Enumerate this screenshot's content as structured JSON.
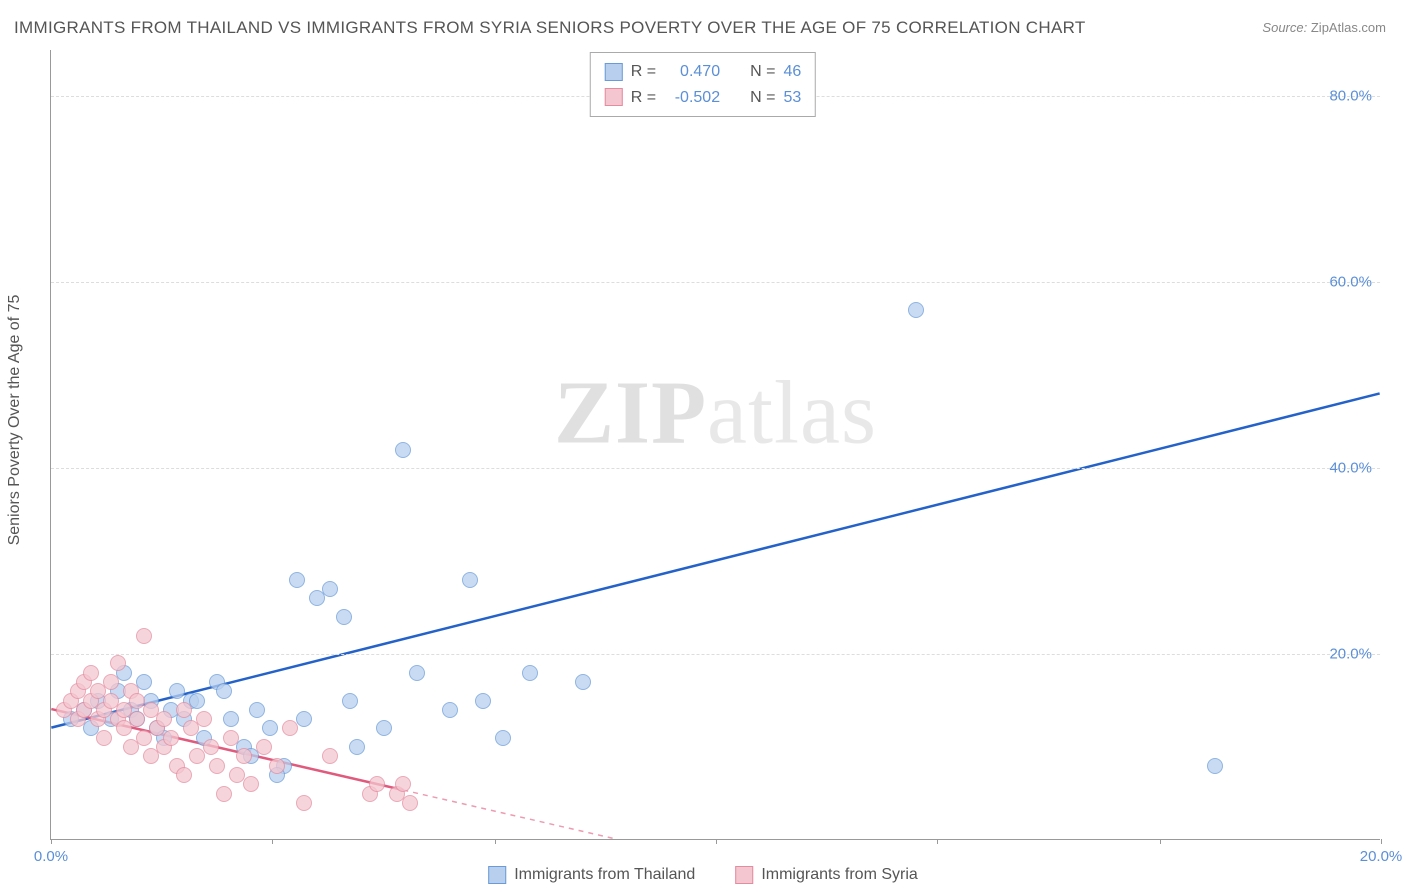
{
  "title": "IMMIGRANTS FROM THAILAND VS IMMIGRANTS FROM SYRIA SENIORS POVERTY OVER THE AGE OF 75 CORRELATION CHART",
  "source_label": "Source:",
  "source_value": "ZipAtlas.com",
  "y_axis_label": "Seniors Poverty Over the Age of 75",
  "watermark_bold": "ZIP",
  "watermark_light": "atlas",
  "chart": {
    "type": "scatter",
    "xlim": [
      0,
      20
    ],
    "ylim": [
      0,
      85
    ],
    "x_ticks": [
      0,
      3.33,
      6.67,
      10,
      13.33,
      16.67,
      20
    ],
    "x_tick_labels": [
      "0.0%",
      "",
      "",
      "",
      "",
      "",
      "20.0%"
    ],
    "y_ticks": [
      20,
      40,
      60,
      80
    ],
    "y_tick_labels": [
      "20.0%",
      "40.0%",
      "60.0%",
      "80.0%"
    ],
    "background_color": "#ffffff",
    "grid_color": "#dddddd",
    "axis_color": "#999999",
    "tick_label_color": "#5b8fd6",
    "series": [
      {
        "name": "Immigrants from Thailand",
        "fill_color": "#b8d0ee",
        "border_color": "#6a9bd8",
        "line_color": "#2462c9",
        "line_width": 2.5,
        "line_solid_end": 20,
        "R_label": "R =",
        "R": "0.470",
        "N_label": "N =",
        "N": "46",
        "trend": {
          "x1": 0,
          "y1": 12,
          "x2": 20,
          "y2": 48
        },
        "points": [
          [
            0.3,
            13
          ],
          [
            0.5,
            14
          ],
          [
            0.6,
            12
          ],
          [
            0.7,
            15
          ],
          [
            0.9,
            13
          ],
          [
            1.0,
            16
          ],
          [
            1.1,
            18
          ],
          [
            1.2,
            14
          ],
          [
            1.4,
            17
          ],
          [
            1.5,
            15
          ],
          [
            1.6,
            12
          ],
          [
            1.8,
            14
          ],
          [
            1.9,
            16
          ],
          [
            2.0,
            13
          ],
          [
            2.1,
            15
          ],
          [
            2.3,
            11
          ],
          [
            2.5,
            17
          ],
          [
            2.7,
            13
          ],
          [
            2.9,
            10
          ],
          [
            3.1,
            14
          ],
          [
            3.3,
            12
          ],
          [
            3.5,
            8
          ],
          [
            3.7,
            28
          ],
          [
            4.0,
            26
          ],
          [
            4.2,
            27
          ],
          [
            4.4,
            24
          ],
          [
            4.6,
            10
          ],
          [
            5.0,
            12
          ],
          [
            5.3,
            42
          ],
          [
            5.5,
            18
          ],
          [
            6.0,
            14
          ],
          [
            6.3,
            28
          ],
          [
            6.5,
            15
          ],
          [
            6.8,
            11
          ],
          [
            7.2,
            18
          ],
          [
            8.0,
            17
          ],
          [
            13.0,
            57
          ],
          [
            17.5,
            8
          ],
          [
            1.3,
            13
          ],
          [
            1.7,
            11
          ],
          [
            2.2,
            15
          ],
          [
            2.6,
            16
          ],
          [
            3.0,
            9
          ],
          [
            3.4,
            7
          ],
          [
            3.8,
            13
          ],
          [
            4.5,
            15
          ]
        ]
      },
      {
        "name": "Immigrants from Syria",
        "fill_color": "#f4c6cf",
        "border_color": "#e38ca0",
        "line_color": "#e05a7d",
        "line_width": 2.5,
        "line_solid_end": 5.3,
        "R_label": "R =",
        "R": "-0.502",
        "N_label": "N =",
        "N": "53",
        "trend": {
          "x1": 0,
          "y1": 14,
          "x2": 8.5,
          "y2": 0
        },
        "points": [
          [
            0.2,
            14
          ],
          [
            0.3,
            15
          ],
          [
            0.4,
            16
          ],
          [
            0.4,
            13
          ],
          [
            0.5,
            17
          ],
          [
            0.5,
            14
          ],
          [
            0.6,
            15
          ],
          [
            0.6,
            18
          ],
          [
            0.7,
            13
          ],
          [
            0.7,
            16
          ],
          [
            0.8,
            14
          ],
          [
            0.8,
            11
          ],
          [
            0.9,
            15
          ],
          [
            0.9,
            17
          ],
          [
            1.0,
            13
          ],
          [
            1.0,
            19
          ],
          [
            1.1,
            14
          ],
          [
            1.1,
            12
          ],
          [
            1.2,
            16
          ],
          [
            1.2,
            10
          ],
          [
            1.3,
            15
          ],
          [
            1.3,
            13
          ],
          [
            1.4,
            22
          ],
          [
            1.4,
            11
          ],
          [
            1.5,
            14
          ],
          [
            1.5,
            9
          ],
          [
            1.6,
            12
          ],
          [
            1.7,
            13
          ],
          [
            1.7,
            10
          ],
          [
            1.8,
            11
          ],
          [
            1.9,
            8
          ],
          [
            2.0,
            14
          ],
          [
            2.0,
            7
          ],
          [
            2.1,
            12
          ],
          [
            2.2,
            9
          ],
          [
            2.3,
            13
          ],
          [
            2.4,
            10
          ],
          [
            2.5,
            8
          ],
          [
            2.6,
            5
          ],
          [
            2.7,
            11
          ],
          [
            2.8,
            7
          ],
          [
            2.9,
            9
          ],
          [
            3.0,
            6
          ],
          [
            3.2,
            10
          ],
          [
            3.4,
            8
          ],
          [
            3.6,
            12
          ],
          [
            3.8,
            4
          ],
          [
            4.2,
            9
          ],
          [
            4.8,
            5
          ],
          [
            4.9,
            6
          ],
          [
            5.2,
            5
          ],
          [
            5.3,
            6
          ],
          [
            5.4,
            4
          ]
        ]
      }
    ]
  },
  "legend_bottom": {
    "thailand": "Immigrants from Thailand",
    "syria": "Immigrants from Syria"
  }
}
